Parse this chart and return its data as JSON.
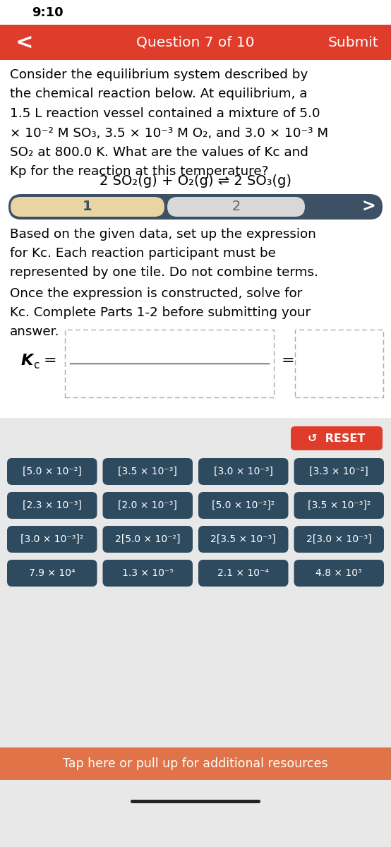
{
  "bg_color": "#ffffff",
  "gray_bg": "#e8e8e8",
  "red_color": "#e03c2b",
  "tile_color": "#2e4a5e",
  "status_time": "9:10",
  "question_nav": "Question 7 of 10",
  "submit_text": "Submit",
  "body_text_lines": [
    "Consider the equilibrium system described by",
    "the chemical reaction below. At equilibrium, a",
    "1.5 L reaction vessel contained a mixture of 5.0",
    "× 10⁻² M SO₃, 3.5 × 10⁻³ M O₂, and 3.0 × 10⁻³ M",
    "SO₂ at 800.0 K. What are the values of Kc and",
    "Kp for the reaction at this temperature?"
  ],
  "reaction": "2 SO₂(g) + O₂(g) ⇌ 2 SO₃(g)",
  "prog_bg_color": "#3d5166",
  "step1_color": "#e8d5a3",
  "step2_color": "#d8d8d8",
  "instruction1": "Based on the given data, set up the expression\nfor Kc. Each reaction participant must be\nrepresented by one tile. Do not combine terms.",
  "instruction2": "Once the expression is constructed, solve for\nKc. Complete Parts 1-2 before submitting your\nanswer.",
  "reset_text": "↺  RESET",
  "tiles": [
    [
      "[5.0 × 10⁻²]",
      "[3.5 × 10⁻³]",
      "[3.0 × 10⁻³]",
      "[3.3 × 10⁻²]"
    ],
    [
      "[2.3 × 10⁻³]",
      "[2.0 × 10⁻³]",
      "[5.0 × 10⁻²]²",
      "[3.5 × 10⁻³]²"
    ],
    [
      "[3.0 × 10⁻³]²",
      "2[5.0 × 10⁻²]",
      "2[3.5 × 10⁻³]",
      "2[3.0 × 10⁻³]"
    ],
    [
      "7.9 × 10⁴",
      "1.3 × 10⁻⁵",
      "2.1 × 10⁻⁴",
      "4.8 × 10³"
    ]
  ],
  "bottom_bar_text": "Tap here or pull up for additional resources",
  "bottom_bar_color": "#e07348"
}
